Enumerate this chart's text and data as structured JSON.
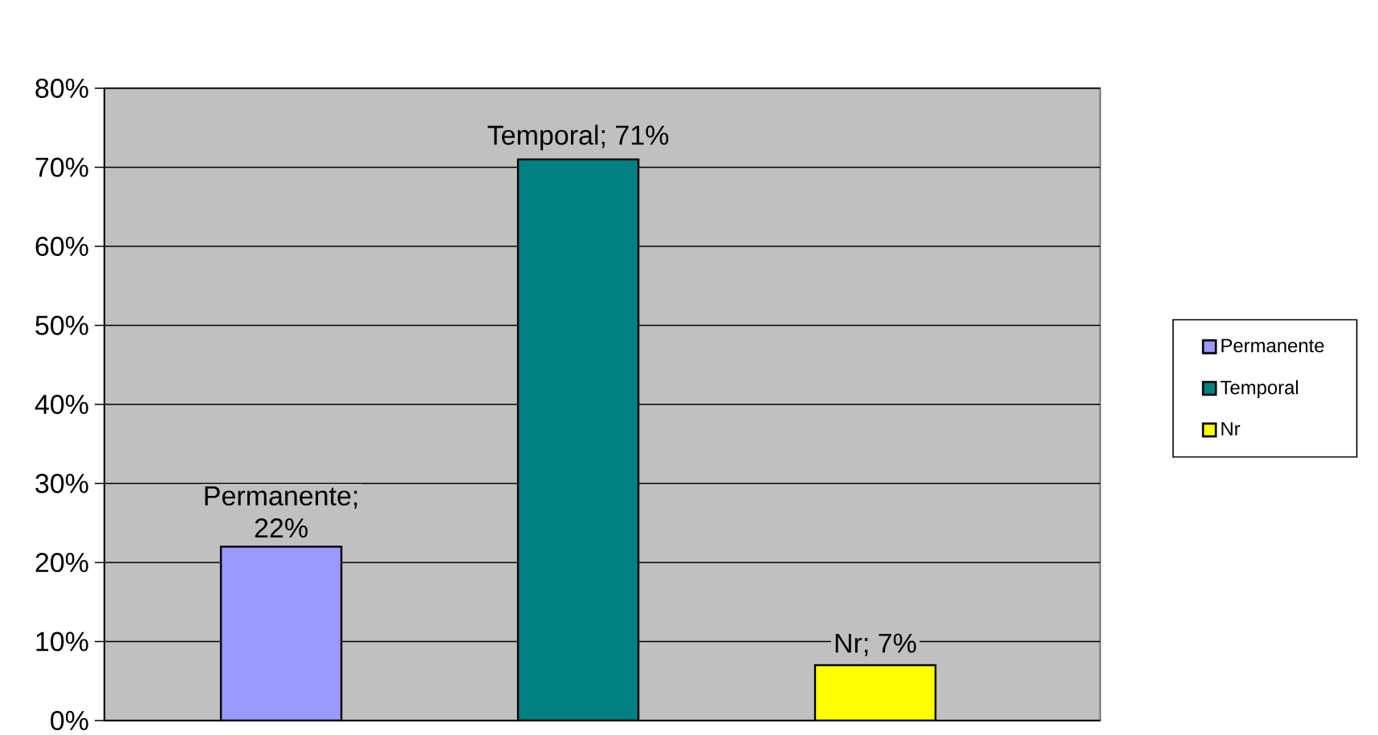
{
  "chart_data": {
    "type": "bar",
    "categories": [
      null,
      null,
      null
    ],
    "series": [
      {
        "name": "Permanente",
        "color": "#9999ff",
        "values": [
          22,
          null,
          null
        ],
        "value_labels": [
          "Permanente; 22%",
          null,
          null
        ]
      },
      {
        "name": "Temporal",
        "color": "#008080",
        "values": [
          null,
          71,
          null
        ],
        "value_labels": [
          null,
          "Temporal; 71%",
          null
        ]
      },
      {
        "name": "Nr",
        "color": "#ffff00",
        "values": [
          null,
          null,
          7
        ],
        "value_labels": [
          null,
          null,
          "Nr; 7%"
        ]
      }
    ],
    "ylim": [
      0,
      80
    ],
    "yticks": [
      {
        "value": 0,
        "label": "0%"
      },
      {
        "value": 10,
        "label": "10%"
      },
      {
        "value": 20,
        "label": "20%"
      },
      {
        "value": 30,
        "label": "30%"
      },
      {
        "value": 40,
        "label": "40%"
      },
      {
        "value": 50,
        "label": "50%"
      },
      {
        "value": 60,
        "label": "60%"
      },
      {
        "value": 70,
        "label": "70%"
      },
      {
        "value": 80,
        "label": "80%"
      }
    ],
    "grid": "y",
    "legend": "right",
    "tick_labels": "y"
  }
}
